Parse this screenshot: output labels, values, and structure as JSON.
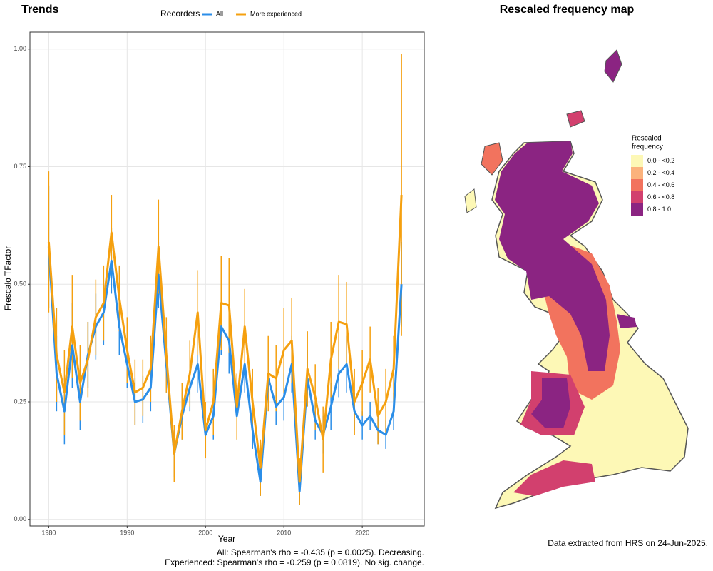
{
  "chart_data": {
    "type": "line",
    "title": "Trends",
    "legend_title": "Recorders",
    "xlabel": "Year",
    "ylabel": "Frescalo TFactor",
    "annotations": [
      "All: Spearman's rho = -0.435 (p = 0.0025). Decreasing.",
      "Experienced: Spearman's rho = -0.259 (p = 0.0819). No sig. change."
    ],
    "x": [
      1980,
      1981,
      1982,
      1983,
      1984,
      1985,
      1986,
      1987,
      1988,
      1989,
      1990,
      1991,
      1992,
      1993,
      1994,
      1995,
      1996,
      1997,
      1998,
      1999,
      2000,
      2001,
      2002,
      2003,
      2004,
      2005,
      2006,
      2007,
      2008,
      2009,
      2010,
      2011,
      2012,
      2013,
      2014,
      2015,
      2016,
      2017,
      2018,
      2019,
      2020,
      2021,
      2022,
      2023,
      2024,
      2025
    ],
    "series": [
      {
        "name": "All",
        "color": "#2b8ee8",
        "values": [
          0.58,
          0.31,
          0.23,
          0.37,
          0.25,
          0.35,
          0.41,
          0.44,
          0.55,
          0.41,
          0.33,
          0.25,
          0.255,
          0.28,
          0.52,
          0.33,
          0.14,
          0.22,
          0.28,
          0.33,
          0.18,
          0.22,
          0.41,
          0.38,
          0.22,
          0.33,
          0.19,
          0.08,
          0.3,
          0.24,
          0.26,
          0.33,
          0.06,
          0.3,
          0.21,
          0.18,
          0.24,
          0.31,
          0.33,
          0.23,
          0.2,
          0.22,
          0.19,
          0.18,
          0.23,
          0.5
        ],
        "errors": [
          0.13,
          0.08,
          0.07,
          0.09,
          0.06,
          0.07,
          0.07,
          0.07,
          0.07,
          0.06,
          0.05,
          0.05,
          0.05,
          0.05,
          0.07,
          0.06,
          0.05,
          0.05,
          0.05,
          0.06,
          0.04,
          0.05,
          0.06,
          0.07,
          0.05,
          0.06,
          0.04,
          0.03,
          0.06,
          0.04,
          0.05,
          0.06,
          0.03,
          0.06,
          0.04,
          0.04,
          0.05,
          0.05,
          0.06,
          0.04,
          0.03,
          0.03,
          0.03,
          0.03,
          0.04,
          0.09
        ]
      },
      {
        "name": "More experienced",
        "color": "#f5a00f",
        "values": [
          0.59,
          0.35,
          0.27,
          0.41,
          0.29,
          0.34,
          0.43,
          0.46,
          0.61,
          0.47,
          0.36,
          0.27,
          0.28,
          0.32,
          0.58,
          0.35,
          0.14,
          0.23,
          0.31,
          0.44,
          0.19,
          0.25,
          0.46,
          0.455,
          0.24,
          0.41,
          0.25,
          0.11,
          0.31,
          0.3,
          0.36,
          0.38,
          0.08,
          0.32,
          0.26,
          0.17,
          0.34,
          0.42,
          0.415,
          0.25,
          0.29,
          0.34,
          0.22,
          0.25,
          0.32,
          0.69
        ],
        "errors": [
          0.15,
          0.1,
          0.09,
          0.11,
          0.08,
          0.08,
          0.08,
          0.08,
          0.08,
          0.07,
          0.07,
          0.07,
          0.06,
          0.07,
          0.1,
          0.08,
          0.06,
          0.06,
          0.07,
          0.09,
          0.06,
          0.07,
          0.1,
          0.1,
          0.07,
          0.08,
          0.07,
          0.06,
          0.08,
          0.07,
          0.09,
          0.09,
          0.05,
          0.08,
          0.07,
          0.07,
          0.08,
          0.1,
          0.09,
          0.07,
          0.07,
          0.07,
          0.06,
          0.07,
          0.07,
          0.3
        ]
      }
    ],
    "xlim": [
      1977.6,
      2027.9
    ],
    "ylim": [
      -0.014,
      1.036
    ],
    "xticks": [
      1980,
      1990,
      2000,
      2010,
      2020
    ],
    "yticks": [
      {
        "value": 0,
        "label": "0.00"
      },
      {
        "value": 0.25,
        "label": "0.25"
      },
      {
        "value": 0.5,
        "label": "0.50"
      },
      {
        "value": 0.75,
        "label": "0.75"
      },
      {
        "value": 1,
        "label": "1.00"
      }
    ],
    "grid": true
  },
  "map": {
    "title": "Rescaled frequency map",
    "legend_title": [
      "Rescaled",
      "frequency"
    ],
    "legend": [
      {
        "label": "0.0 - <0.2",
        "color": "#fdf8b6"
      },
      {
        "label": "0.2 - <0.4",
        "color": "#fbb27c"
      },
      {
        "label": "0.4 - <0.6",
        "color": "#f2735e"
      },
      {
        "label": "0.6 - <0.8",
        "color": "#d2406e"
      },
      {
        "label": "0.8 - 1.0",
        "color": "#8b2482"
      }
    ],
    "footnote": "Data extracted from HRS on 24-Jun-2025."
  }
}
